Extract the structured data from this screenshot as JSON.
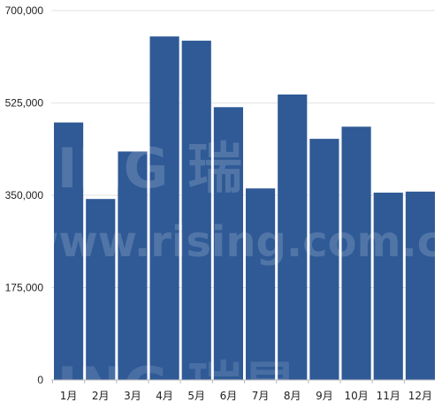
{
  "chart_data": {
    "type": "bar",
    "title": "",
    "xlabel": "",
    "ylabel": "",
    "categories": [
      "1月",
      "2月",
      "3月",
      "4月",
      "5月",
      "6月",
      "7月",
      "8月",
      "9月",
      "10月",
      "11月",
      "12月"
    ],
    "values": [
      488000,
      343000,
      433000,
      651000,
      643000,
      517000,
      363000,
      541000,
      457000,
      480000,
      355000,
      357000
    ],
    "ylim": [
      0,
      700000
    ],
    "yticks": [
      0,
      175000,
      350000,
      525000,
      700000
    ],
    "ytick_labels": [
      "0",
      "175,000",
      "350,000",
      "525,000",
      "700,000"
    ],
    "grid": true,
    "bar_color": "#2f5a96"
  },
  "watermark": {
    "line1": "SING 瑞",
    "line2": "www.rising.com.c",
    "line3": "SING 瑞星"
  }
}
